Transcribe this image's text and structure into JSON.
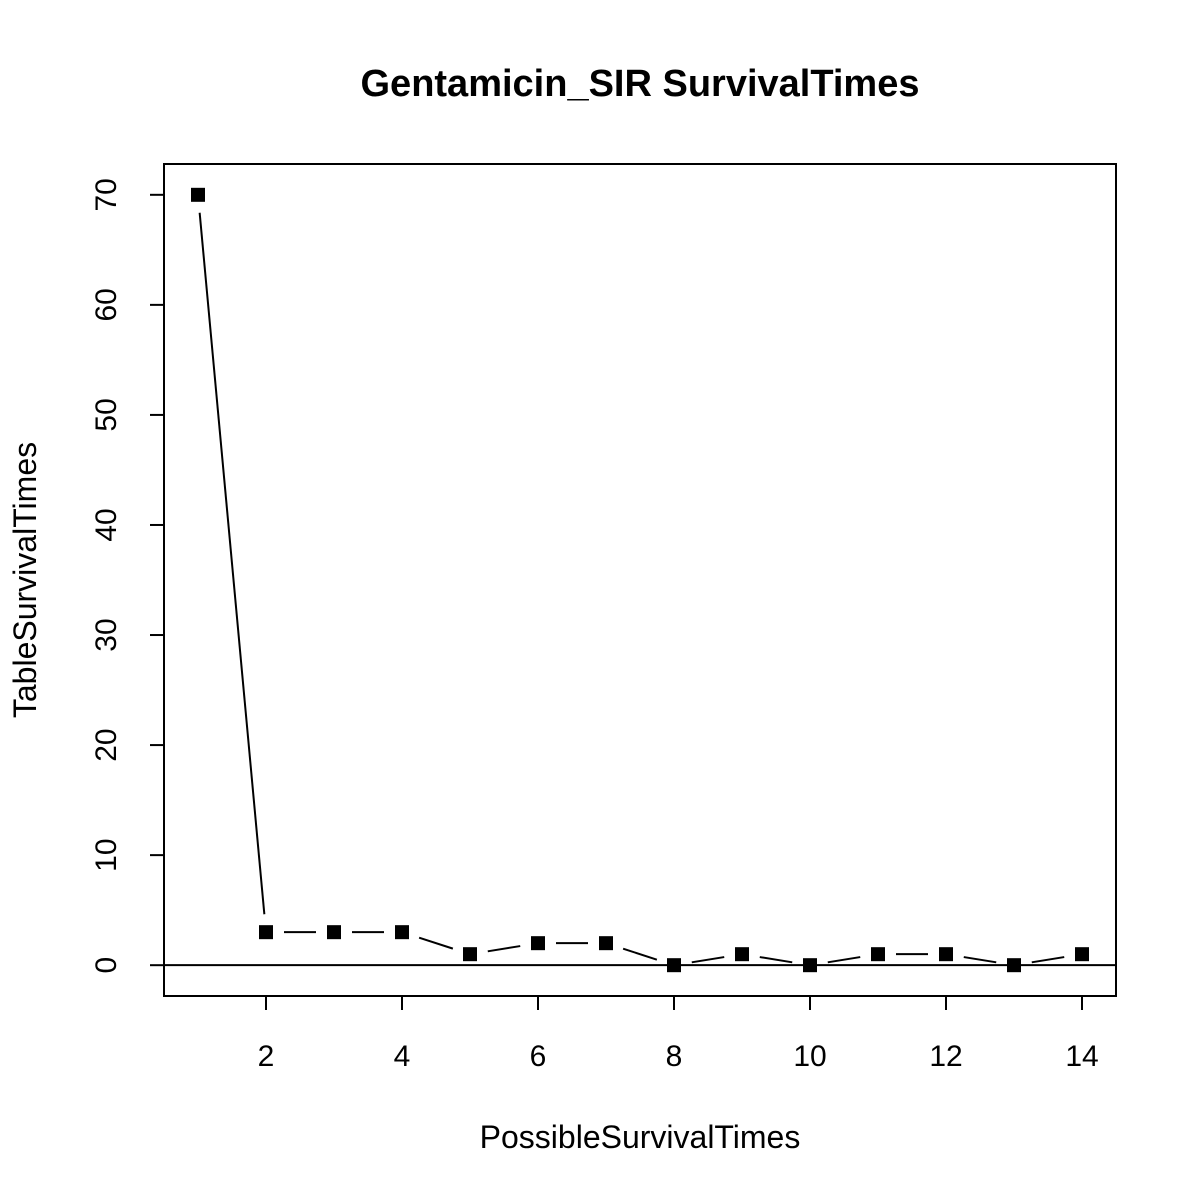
{
  "chart_data": {
    "type": "line",
    "title": "Gentamicin_SIR SurvivalTimes",
    "xlabel": "PossibleSurvivalTimes",
    "ylabel": "TableSurvivalTimes",
    "x": [
      1,
      2,
      3,
      4,
      5,
      6,
      7,
      8,
      9,
      10,
      11,
      12,
      13,
      14
    ],
    "series": [
      {
        "values": [
          70,
          3,
          3,
          3,
          1,
          2,
          2,
          0,
          1,
          0,
          1,
          1,
          0,
          1
        ]
      }
    ],
    "xlim": [
      0.5,
      14.5
    ],
    "ylim": [
      -2.8,
      72.8
    ],
    "xticks": [
      "2",
      "4",
      "6",
      "8",
      "10",
      "12",
      "14"
    ],
    "yticks": [
      "0",
      "10",
      "20",
      "30",
      "40",
      "50",
      "60",
      "70"
    ],
    "hline": 0,
    "marker": "square",
    "grid": false,
    "legend": "none",
    "colors": {
      "line": "#000000",
      "marker": "#000000",
      "background": "#ffffff"
    }
  }
}
